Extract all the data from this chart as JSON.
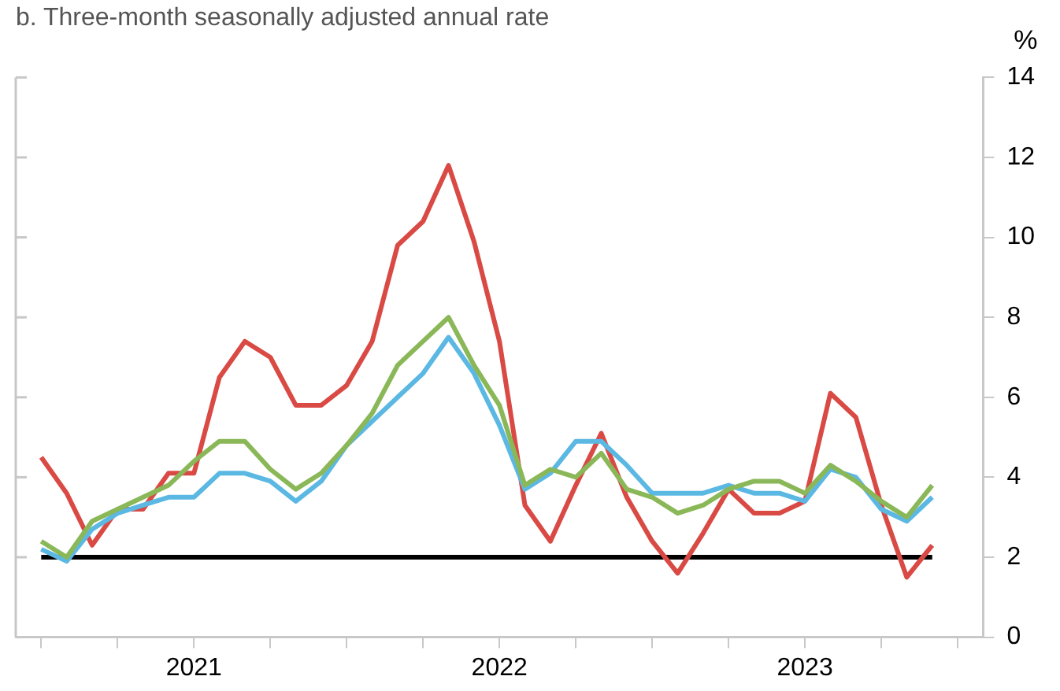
{
  "chart_data": {
    "type": "line",
    "title": "b. Three-month seasonally adjusted annual rate",
    "ylabel": "%",
    "x": [
      "2020-07",
      "2020-08",
      "2020-09",
      "2020-10",
      "2020-11",
      "2020-12",
      "2021-01",
      "2021-02",
      "2021-03",
      "2021-04",
      "2021-05",
      "2021-06",
      "2021-07",
      "2021-08",
      "2021-09",
      "2021-10",
      "2021-11",
      "2021-12",
      "2022-01",
      "2022-02",
      "2022-03",
      "2022-04",
      "2022-05",
      "2022-06",
      "2022-07",
      "2022-08",
      "2022-09",
      "2022-10",
      "2022-11",
      "2022-12",
      "2023-01",
      "2023-02",
      "2023-03",
      "2023-04",
      "2023-05",
      "2023-06"
    ],
    "series": [
      {
        "color": "#8ab858",
        "values": [
          2.4,
          2.0,
          2.9,
          3.2,
          3.5,
          3.8,
          4.4,
          4.9,
          4.9,
          4.2,
          3.7,
          4.1,
          4.8,
          5.6,
          6.8,
          7.4,
          8.0,
          6.8,
          5.8,
          3.8,
          4.2,
          4.0,
          4.6,
          3.7,
          3.5,
          3.1,
          3.3,
          3.7,
          3.9,
          3.9,
          3.6,
          4.3,
          3.9,
          3.4,
          3.0,
          3.8
        ]
      },
      {
        "color": "#5bb8e3",
        "values": [
          2.2,
          1.9,
          2.7,
          3.1,
          3.3,
          3.5,
          3.5,
          4.1,
          4.1,
          3.9,
          3.4,
          3.9,
          4.8,
          5.4,
          6.0,
          6.6,
          7.5,
          6.6,
          5.3,
          3.7,
          4.1,
          4.9,
          4.9,
          4.3,
          3.6,
          3.6,
          3.6,
          3.8,
          3.6,
          3.6,
          3.4,
          4.2,
          4.0,
          3.2,
          2.9,
          3.5
        ]
      },
      {
        "color": "#d94a45",
        "values": [
          4.5,
          3.6,
          2.3,
          3.2,
          3.2,
          4.1,
          4.1,
          6.5,
          7.4,
          7.0,
          5.8,
          5.8,
          6.3,
          7.4,
          9.8,
          10.4,
          11.8,
          9.9,
          7.4,
          3.3,
          2.4,
          3.8,
          5.1,
          3.5,
          2.4,
          1.6,
          2.6,
          3.7,
          3.1,
          3.1,
          3.4,
          6.1,
          5.5,
          3.3,
          1.5,
          2.3
        ]
      }
    ],
    "ref_lines": [
      {
        "axis": "y",
        "value": 2,
        "color": "#000000"
      }
    ],
    "xlim": [
      "2020-06",
      "2023-08"
    ],
    "xticks": [
      {
        "value": "2020-07",
        "label": null
      },
      {
        "value": "2020-10",
        "label": null
      },
      {
        "value": "2021-01",
        "label": "2021"
      },
      {
        "value": "2021-04",
        "label": null
      },
      {
        "value": "2021-07",
        "label": null
      },
      {
        "value": "2021-10",
        "label": null
      },
      {
        "value": "2022-01",
        "label": "2022"
      },
      {
        "value": "2022-04",
        "label": null
      },
      {
        "value": "2022-07",
        "label": null
      },
      {
        "value": "2022-10",
        "label": null
      },
      {
        "value": "2023-01",
        "label": "2023"
      },
      {
        "value": "2023-04",
        "label": null
      },
      {
        "value": "2023-07",
        "label": null
      }
    ],
    "ylim": [
      0,
      14
    ],
    "yticks": [
      0,
      2,
      4,
      6,
      8,
      10,
      12,
      14
    ],
    "grid": false,
    "legend": false,
    "marker": "none",
    "line_style": "solid"
  }
}
